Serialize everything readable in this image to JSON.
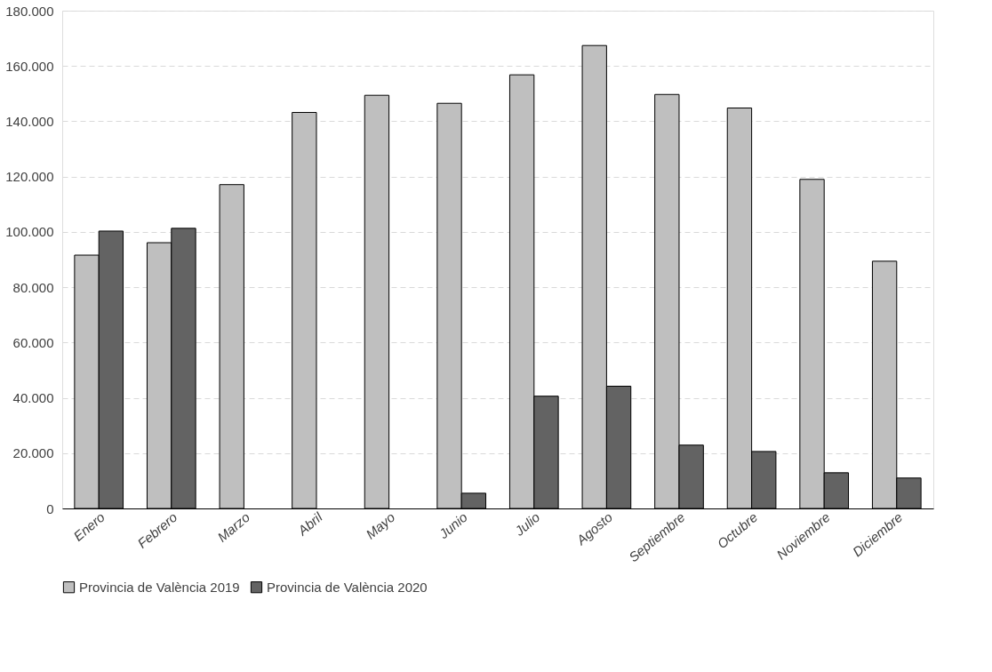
{
  "chart_data": {
    "type": "bar",
    "categories": [
      "Enero",
      "Febrero",
      "Marzo",
      "Abril",
      "Mayo",
      "Junio",
      "Julio",
      "Agosto",
      "Septiembre",
      "Octubre",
      "Noviembre",
      "Diciembre"
    ],
    "series": [
      {
        "name": "Provincia de València 2019",
        "color": "#bfbfbf",
        "values": [
          91600,
          96100,
          117100,
          143200,
          149400,
          146500,
          156800,
          167400,
          149700,
          144800,
          119000,
          89400
        ]
      },
      {
        "name": "Provincia de València 2020",
        "color": "#636363",
        "values": [
          100300,
          101300,
          null,
          null,
          null,
          5500,
          40600,
          44200,
          22900,
          20600,
          12900,
          11000
        ]
      }
    ],
    "ylim": [
      0,
      180000
    ],
    "yticks": [
      0,
      {
        "value": 20000,
        "label": "20.000"
      },
      {
        "value": 40000,
        "label": "40.000"
      },
      {
        "value": 60000,
        "label": "60.000"
      },
      {
        "value": 80000,
        "label": "80.000"
      },
      {
        "value": 100000,
        "label": "100.000"
      },
      {
        "value": 120000,
        "label": "120.000"
      },
      {
        "value": 140000,
        "label": "140.000"
      },
      {
        "value": 160000,
        "label": "160.000"
      },
      {
        "value": 180000,
        "label": "180.000"
      }
    ],
    "grid": "y",
    "legend": "bottom"
  }
}
